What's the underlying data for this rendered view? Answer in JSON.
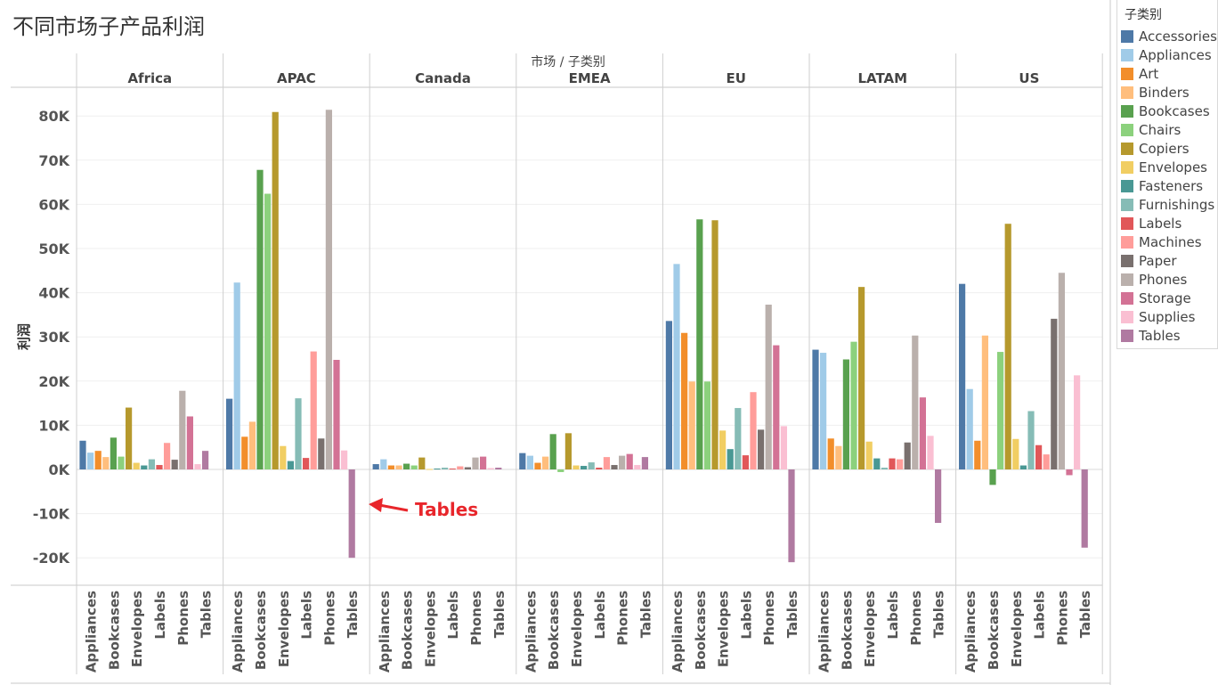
{
  "title": "不同市场子产品利润",
  "header_label": "市场 / 子类别",
  "legend_title": "子类别",
  "annotation": {
    "text": "Tables",
    "color": "#e8262b"
  },
  "chart_data": {
    "type": "bar",
    "title": "不同市场子产品利润",
    "ylabel": "利润",
    "xlabel": "",
    "ylim": [
      -26000,
      88000
    ],
    "yticks": [
      -20000,
      -10000,
      0,
      10000,
      20000,
      30000,
      40000,
      50000,
      60000,
      70000,
      80000
    ],
    "ytick_labels": [
      "-20K",
      "-10K",
      "0K",
      "10K",
      "20K",
      "30K",
      "40K",
      "50K",
      "60K",
      "70K",
      "80K"
    ],
    "markets": [
      "Africa",
      "APAC",
      "Canada",
      "EMEA",
      "EU",
      "LATAM",
      "US"
    ],
    "categories": [
      "Accessories",
      "Appliances",
      "Art",
      "Binders",
      "Bookcases",
      "Chairs",
      "Copiers",
      "Envelopes",
      "Fasteners",
      "Furnishings",
      "Labels",
      "Machines",
      "Paper",
      "Phones",
      "Storage",
      "Supplies",
      "Tables"
    ],
    "category_colors": [
      "#4e79a7",
      "#a0cbe8",
      "#f28e2b",
      "#ffbe7d",
      "#59a14f",
      "#8cd17d",
      "#b6992d",
      "#f1ce63",
      "#499894",
      "#86bcb6",
      "#e15759",
      "#ff9d9a",
      "#79706e",
      "#bab0ac",
      "#d37295",
      "#fabfd2",
      "#b07aa1"
    ],
    "axis_tick_labels": [
      "Appliances",
      "Bookcases",
      "Envelopes",
      "Labels",
      "Phones",
      "Tables"
    ],
    "series": [
      {
        "name": "Africa",
        "values": [
          6500,
          3800,
          4200,
          2800,
          7200,
          2900,
          14000,
          1500,
          900,
          2300,
          1000,
          6000,
          2200,
          17800,
          12000,
          1200,
          4200
        ]
      },
      {
        "name": "APAC",
        "values": [
          16000,
          42300,
          7400,
          10800,
          67800,
          62400,
          80900,
          5300,
          1900,
          16100,
          2600,
          26700,
          7000,
          81400,
          24800,
          4300,
          -20000
        ]
      },
      {
        "name": "Canada",
        "values": [
          1200,
          2300,
          900,
          900,
          1300,
          900,
          2700,
          100,
          200,
          400,
          200,
          700,
          500,
          2700,
          2900,
          300,
          400
        ]
      },
      {
        "name": "EMEA",
        "values": [
          3700,
          3100,
          1500,
          2900,
          8000,
          -600,
          8200,
          900,
          800,
          1600,
          400,
          2800,
          1000,
          3100,
          3500,
          1000,
          2800
        ]
      },
      {
        "name": "EU",
        "values": [
          33600,
          46500,
          30900,
          19900,
          56600,
          19900,
          56400,
          8800,
          4600,
          13900,
          3200,
          17500,
          9000,
          37300,
          28100,
          9800,
          -21000
        ]
      },
      {
        "name": "LATAM",
        "values": [
          27100,
          26400,
          7000,
          5300,
          24900,
          28900,
          41300,
          6300,
          2500,
          400,
          2500,
          2300,
          6100,
          30300,
          16300,
          7600,
          -12100
        ]
      },
      {
        "name": "US",
        "values": [
          42000,
          18200,
          6500,
          30300,
          -3500,
          26600,
          55600,
          6900,
          900,
          13200,
          5500,
          3400,
          34100,
          44500,
          -1300,
          21300,
          -17700
        ]
      }
    ]
  }
}
